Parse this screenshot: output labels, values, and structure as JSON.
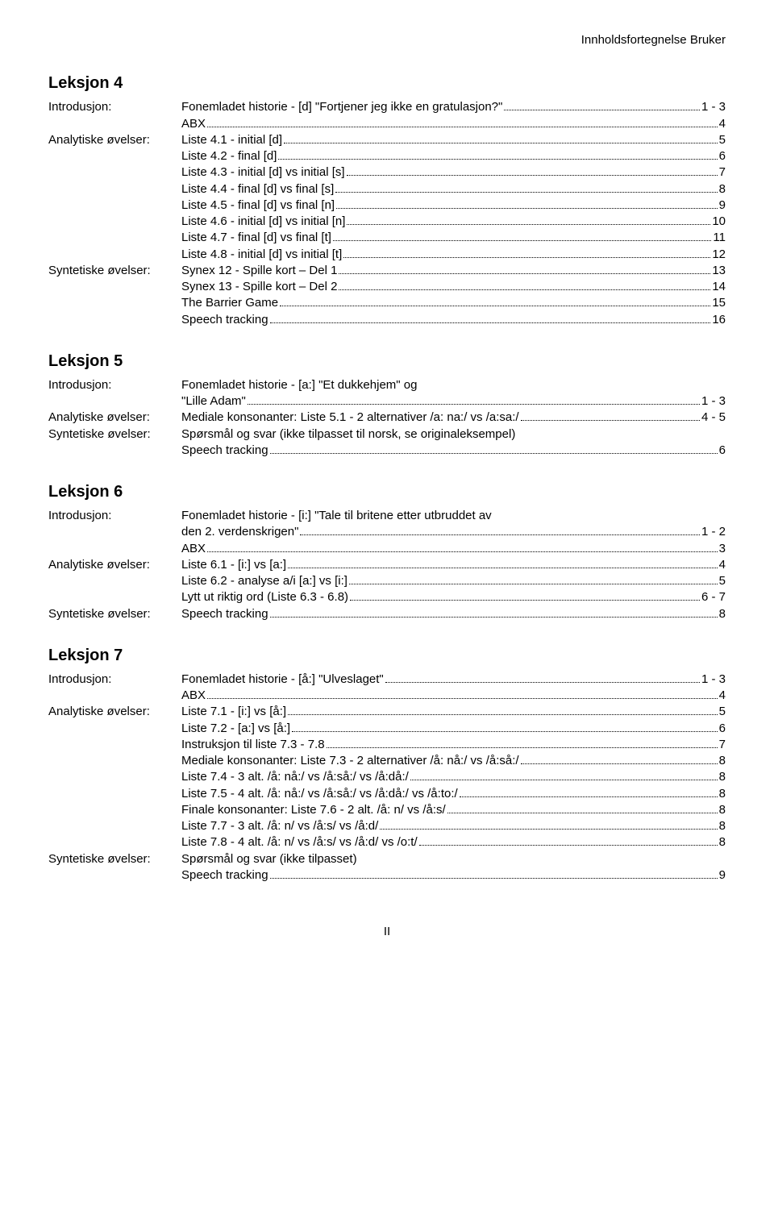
{
  "header_right": "Innholdsfortegnelse  Bruker",
  "labels": {
    "intro": "Introdusjon:",
    "analytic": "Analytiske øvelser:",
    "synthetic": "Syntetiske øvelser:"
  },
  "lessons": [
    {
      "title": "Leksjon 4",
      "rows": [
        {
          "label": "intro",
          "text": "Fonemladet historie - [d] \"Fortjener jeg ikke en gratulasjon?\"",
          "page": " 1 - 3"
        },
        {
          "label": "",
          "text": "ABX",
          "page": "4"
        },
        {
          "label": "analytic",
          "text": "Liste 4.1 - initial [d]",
          "page": "5"
        },
        {
          "label": "",
          "text": "Liste 4.2 - final [d]",
          "page": "6"
        },
        {
          "label": "",
          "text": "Liste 4.3 - initial [d] vs initial [s]",
          "page": "7"
        },
        {
          "label": "",
          "text": "Liste 4.4 - final [d] vs final [s]",
          "page": "8"
        },
        {
          "label": "",
          "text": "Liste 4.5 - final [d] vs final [n]",
          "page": "9"
        },
        {
          "label": "",
          "text": "Liste 4.6 - initial [d] vs initial [n]",
          "page": "10"
        },
        {
          "label": "",
          "text": "Liste 4.7 - final [d] vs final [t]",
          "page": "11"
        },
        {
          "label": "",
          "text": "Liste 4.8 - initial [d] vs initial [t]",
          "page": "12"
        },
        {
          "label": "synthetic",
          "text": "Synex 12 - Spille kort – Del 1",
          "page": "13"
        },
        {
          "label": "",
          "text": "Synex 13 - Spille kort – Del 2",
          "page": "14"
        },
        {
          "label": "",
          "text": "The Barrier Game",
          "page": "15"
        },
        {
          "label": "",
          "text": "Speech tracking",
          "page": "16"
        }
      ]
    },
    {
      "title": "Leksjon 5",
      "rows": [
        {
          "label": "intro",
          "text": "Fonemladet historie - [a:] \"Et dukkehjem\" og",
          "nodots": true
        },
        {
          "label": "",
          "text": "\"Lille Adam\"",
          "page": " 1 - 3"
        },
        {
          "label": "analytic",
          "text": "Mediale konsonanter: Liste 5.1 - 2 alternativer /a: na:/ vs /a:sa:/",
          "page": " 4 - 5"
        },
        {
          "label": "synthetic",
          "text": "Spørsmål og svar (ikke tilpasset til norsk, se originaleksempel)",
          "nodots": true
        },
        {
          "label": "",
          "text": "Speech tracking",
          "page": "6"
        }
      ]
    },
    {
      "title": "Leksjon 6",
      "rows": [
        {
          "label": "intro",
          "text": "Fonemladet historie - [i:] \"Tale til britene etter utbruddet av",
          "nodots": true
        },
        {
          "label": "",
          "text": "den 2. verdenskrigen\"",
          "page": " 1 - 2"
        },
        {
          "label": "",
          "text": "ABX",
          "page": "3"
        },
        {
          "label": "analytic",
          "text": "Liste 6.1 - [i:] vs [a:]",
          "page": "4"
        },
        {
          "label": "",
          "text": "Liste 6.2 - analyse a/i [a:] vs [i:]",
          "page": "5"
        },
        {
          "label": "",
          "text": "Lytt ut riktig ord (Liste 6.3 - 6.8)",
          "page": " 6 - 7"
        },
        {
          "label": "synthetic",
          "text": "Speech tracking",
          "page": "8"
        }
      ]
    },
    {
      "title": "Leksjon 7",
      "rows": [
        {
          "label": "intro",
          "text": "Fonemladet historie - [å:] \"Ulveslaget\"",
          "page": " 1 - 3"
        },
        {
          "label": "",
          "text": "ABX",
          "page": "4"
        },
        {
          "label": "analytic",
          "text": "Liste 7.1 - [i:] vs [å:]",
          "page": "5"
        },
        {
          "label": "",
          "text": "Liste 7.2 - [a:] vs [å:]",
          "page": "6"
        },
        {
          "label": "",
          "text": "Instruksjon til liste 7.3 - 7.8",
          "page": "7"
        },
        {
          "label": "",
          "text": "Mediale konsonanter: Liste 7.3 - 2 alternativer /å: nå:/ vs /å:så:/",
          "page": "8"
        },
        {
          "label": "",
          "text": "Liste 7.4 - 3 alt. /å: nå:/ vs /å:så:/ vs /å:då:/",
          "page": "8"
        },
        {
          "label": "",
          "text": "Liste 7.5 - 4 alt. /å: nå:/ vs /å:så:/ vs /å:då:/ vs /å:to:/",
          "page": "8"
        },
        {
          "label": "",
          "text": "Finale konsonanter: Liste 7.6 - 2 alt. /å: n/ vs /å:s/",
          "page": "8"
        },
        {
          "label": "",
          "text": "Liste 7.7 - 3 alt. /å: n/ vs /å:s/ vs /å:d/",
          "page": "8"
        },
        {
          "label": "",
          "text": "Liste 7.8 - 4 alt. /å: n/ vs /å:s/ vs /å:d/ vs /o:t/",
          "page": "8"
        },
        {
          "label": "synthetic",
          "text": "Spørsmål og svar (ikke tilpasset)",
          "nodots": true
        },
        {
          "label": "",
          "text": "Speech tracking",
          "page": "9"
        }
      ]
    }
  ],
  "footer": "II"
}
